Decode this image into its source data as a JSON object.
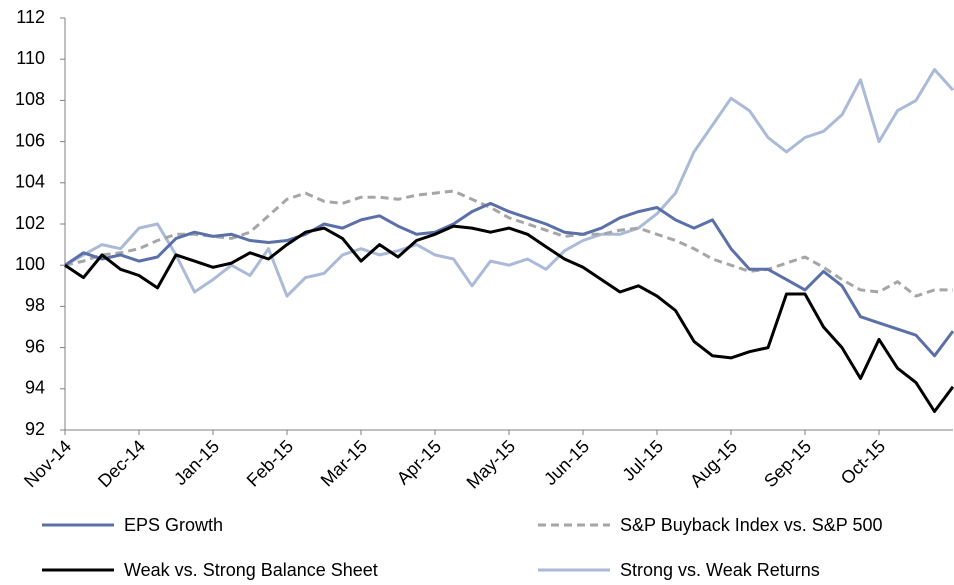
{
  "chart_data": {
    "type": "line",
    "categories": [
      "Nov-14",
      null,
      null,
      null,
      "Dec-14",
      null,
      null,
      null,
      "Jan-15",
      null,
      null,
      null,
      "Feb-15",
      null,
      null,
      null,
      "Mar-15",
      null,
      null,
      null,
      "Apr-15",
      null,
      null,
      null,
      "May-15",
      null,
      null,
      null,
      "Jun-15",
      null,
      null,
      null,
      "Jul-15",
      null,
      null,
      null,
      "Aug-15",
      null,
      null,
      null,
      "Sep-15",
      null,
      null,
      null,
      "Oct-15",
      null,
      null,
      null,
      null
    ],
    "series": [
      {
        "name": "EPS Growth",
        "color": "#5b70a8",
        "dash": false,
        "values": [
          100,
          100.6,
          100.3,
          100.5,
          100.2,
          100.4,
          101.3,
          101.6,
          101.4,
          101.5,
          101.2,
          101.1,
          101.2,
          101.5,
          102,
          101.8,
          102.2,
          102.4,
          101.9,
          101.5,
          101.6,
          102,
          102.6,
          103,
          102.6,
          102.3,
          102,
          101.6,
          101.5,
          101.8,
          102.3,
          102.6,
          102.8,
          102.2,
          101.8,
          102.2,
          100.8,
          99.8,
          99.8,
          99.3,
          98.8,
          99.7,
          99,
          97.5,
          97.2,
          96.9,
          96.6,
          95.6,
          96.8
        ]
      },
      {
        "name": "S&P Buyback Index vs. S&P 500",
        "color": "#a6a6a6",
        "dash": true,
        "values": [
          100,
          100.2,
          100.5,
          100.6,
          100.8,
          101.2,
          101.5,
          101.5,
          101.4,
          101.3,
          101.6,
          102.4,
          103.2,
          103.5,
          103.1,
          103,
          103.3,
          103.3,
          103.2,
          103.4,
          103.5,
          103.6,
          103.2,
          102.8,
          102.3,
          102,
          101.7,
          101.4,
          101.5,
          101.5,
          101.7,
          101.8,
          101.5,
          101.2,
          100.8,
          100.3,
          100,
          99.7,
          99.8,
          100.1,
          100.4,
          99.9,
          99.3,
          98.8,
          98.7,
          99.2,
          98.5,
          98.8,
          98.8
        ]
      },
      {
        "name": "Weak vs. Strong Balance Sheet",
        "color": "#000000",
        "dash": false,
        "values": [
          100,
          99.4,
          100.5,
          99.8,
          99.5,
          98.9,
          100.5,
          100.2,
          99.9,
          100.1,
          100.6,
          100.3,
          101,
          101.6,
          101.8,
          101.3,
          100.2,
          101,
          100.4,
          101.2,
          101.5,
          101.9,
          101.8,
          101.6,
          101.8,
          101.5,
          100.9,
          100.3,
          99.9,
          99.3,
          98.7,
          99,
          98.5,
          97.8,
          96.3,
          95.6,
          95.5,
          95.8,
          96,
          98.6,
          98.6,
          97,
          96,
          94.5,
          96.4,
          95,
          94.3,
          92.9,
          94.1
        ]
      },
      {
        "name": "Strong vs. Weak Returns",
        "color": "#aabad7",
        "dash": false,
        "values": [
          100,
          100.5,
          101,
          100.8,
          101.8,
          102,
          100.5,
          98.7,
          99.3,
          100,
          99.5,
          100.8,
          98.5,
          99.4,
          99.6,
          100.5,
          100.8,
          100.5,
          100.7,
          101,
          100.5,
          100.3,
          99,
          100.2,
          100,
          100.3,
          99.8,
          100.7,
          101.2,
          101.5,
          101.5,
          101.8,
          102.5,
          103.5,
          105.5,
          106.8,
          108.1,
          107.5,
          106.2,
          105.5,
          106.2,
          106.5,
          107.3,
          109,
          106,
          107.5,
          108,
          109.5,
          108.5
        ]
      }
    ],
    "ylim": [
      92,
      112
    ],
    "yticks": [
      92,
      94,
      96,
      98,
      100,
      102,
      104,
      106,
      108,
      110,
      112
    ]
  }
}
